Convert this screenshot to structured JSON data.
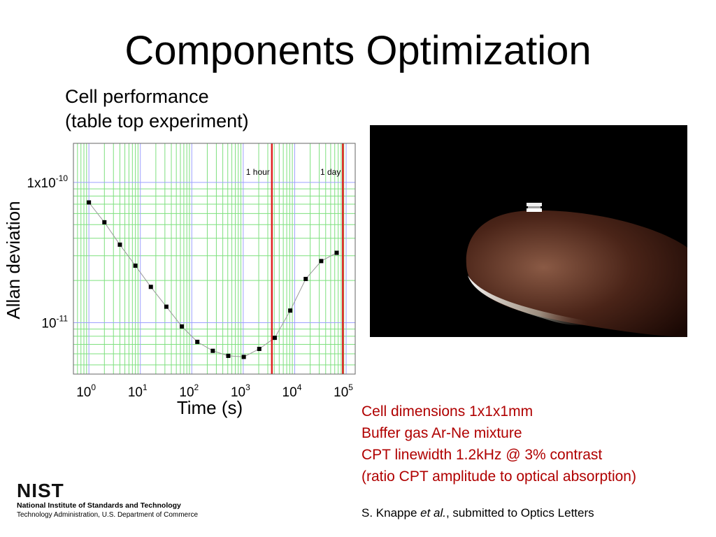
{
  "slide": {
    "title": "Components Optimization",
    "subtitle_lines": [
      "Cell performance",
      "(table top experiment)"
    ]
  },
  "chart_data": {
    "type": "scatter",
    "xlabel": "Time (s)",
    "ylabel": "Allan deviation",
    "x_scale": "log",
    "y_scale": "log",
    "xlim": [
      0.5,
      150000
    ],
    "ylim": [
      4.3e-12,
      1.9e-10
    ],
    "x_ticks": [
      1,
      10,
      100,
      1000,
      10000,
      100000
    ],
    "x_tick_labels": [
      {
        "base": "10",
        "exp": "0"
      },
      {
        "base": "10",
        "exp": "1"
      },
      {
        "base": "10",
        "exp": "2"
      },
      {
        "base": "10",
        "exp": "3"
      },
      {
        "base": "10",
        "exp": "4"
      },
      {
        "base": "10",
        "exp": "5"
      }
    ],
    "y_ticks": [
      1e-10,
      1e-11
    ],
    "y_tick_labels": [
      {
        "base": "1x10",
        "exp": "-10"
      },
      {
        "base": "10",
        "exp": "-11"
      }
    ],
    "grid": true,
    "series": [
      {
        "x": [
          1,
          2,
          4,
          8,
          16,
          32,
          64,
          128,
          256,
          512,
          1024,
          2048,
          4096,
          8192,
          16384,
          32768,
          65536
        ],
        "y": [
          7.2e-11,
          5.2e-11,
          3.6e-11,
          2.55e-11,
          1.8e-11,
          1.3e-11,
          9.4e-12,
          7.3e-12,
          6.3e-12,
          5.8e-12,
          5.7e-12,
          6.5e-12,
          7.8e-12,
          1.22e-11,
          2.05e-11,
          2.75e-11,
          3.15e-11
        ],
        "color": "#000000"
      }
    ],
    "markers": [
      {
        "x": 3600,
        "label": "1 hour",
        "color": "#e02020"
      },
      {
        "x": 86400,
        "label": "1 day",
        "color": "#e02020"
      }
    ],
    "colors": {
      "major_grid": "#9ea0ff",
      "minor_grid": "#7ee07e",
      "line": "#999999"
    }
  },
  "specs": [
    "Cell dimensions 1x1x1mm",
    "Buffer gas Ar-Ne mixture",
    "CPT linewidth 1.2kHz @ 3% contrast",
    "(ratio CPT amplitude to optical absorption)"
  ],
  "citation": {
    "pre": "S. Knappe ",
    "italic": "et al.",
    "post": ", submitted to Optics Letters"
  },
  "footer": {
    "logo_text": "NIST",
    "line1": "National Institute of Standards and Technology",
    "line2": "Technology Administration, U.S. Department of Commerce"
  }
}
